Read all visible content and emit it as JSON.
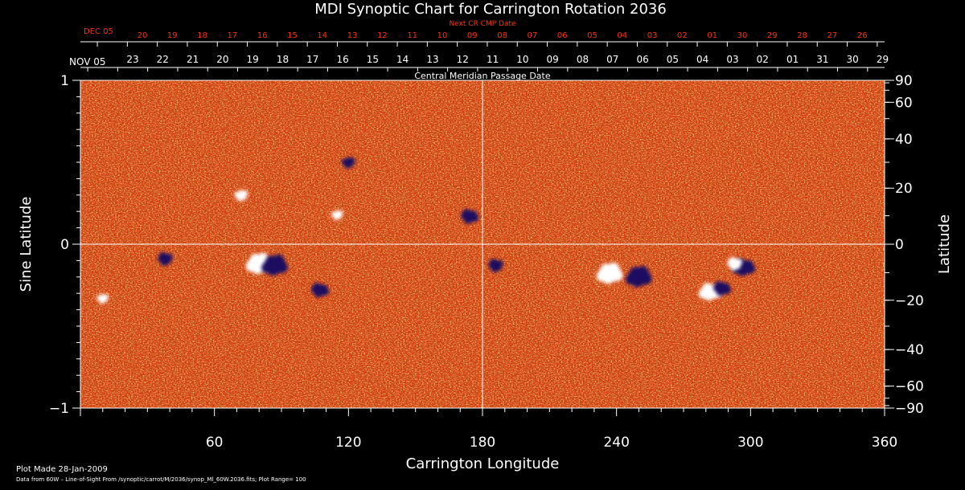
{
  "chart_data": {
    "type": "heatmap",
    "title": "MDI Synoptic Chart for Carrington Rotation 2036",
    "xlabel": "Carrington Longitude",
    "ylabel_left": "Sine Latitude",
    "ylabel_right": "Latitude",
    "x_range": [
      0,
      360
    ],
    "x_ticks": [
      60,
      120,
      180,
      240,
      300,
      360
    ],
    "y_left_range": [
      -1,
      1
    ],
    "y_left_ticks": [
      1,
      0,
      -1
    ],
    "y_left_tick_labels": [
      "1",
      "0",
      "−1"
    ],
    "y_right_ticks": [
      90,
      60,
      40,
      20,
      0,
      -20,
      -40,
      -60,
      -90
    ],
    "y_right_tick_labels": [
      "90",
      "60",
      "40",
      "20",
      "0",
      "−20",
      "−40",
      "−60",
      "−90"
    ],
    "top_axis_cmp": {
      "label": "Central Meridian Passage Date",
      "first_label": "NOV 05",
      "dates": [
        "23",
        "22",
        "21",
        "20",
        "19",
        "18",
        "17",
        "16",
        "15",
        "14",
        "13",
        "12",
        "11",
        "10",
        "09",
        "08",
        "07",
        "06",
        "05",
        "04",
        "03",
        "02",
        "01",
        "31",
        "30",
        "29"
      ]
    },
    "top_axis_next_cr": {
      "label": "Next CR CMP Date",
      "first_label": "DEC 05",
      "dates": [
        "20",
        "19",
        "18",
        "17",
        "16",
        "15",
        "14",
        "13",
        "12",
        "11",
        "10",
        "09",
        "08",
        "07",
        "06",
        "05",
        "04",
        "03",
        "02",
        "01",
        "30",
        "29",
        "28",
        "27",
        "26"
      ]
    },
    "crosshair": {
      "longitude": 180,
      "sine_latitude": 0
    },
    "colors": {
      "background_field": "#e04a10",
      "positive": "#ffffff",
      "negative": "#1a1060",
      "label_red": "#ff3300"
    },
    "features": [
      {
        "longitude": 80,
        "sine_latitude": -0.12,
        "polarity": "positive",
        "strength": 1.0
      },
      {
        "longitude": 87,
        "sine_latitude": -0.13,
        "polarity": "negative",
        "strength": 1.0
      },
      {
        "longitude": 107,
        "sine_latitude": -0.28,
        "polarity": "negative",
        "strength": 0.6
      },
      {
        "longitude": 38,
        "sine_latitude": -0.09,
        "polarity": "negative",
        "strength": 0.5
      },
      {
        "longitude": 174,
        "sine_latitude": 0.17,
        "polarity": "negative",
        "strength": 0.6
      },
      {
        "longitude": 72,
        "sine_latitude": 0.3,
        "polarity": "positive",
        "strength": 0.4
      },
      {
        "longitude": 115,
        "sine_latitude": 0.18,
        "polarity": "positive",
        "strength": 0.3
      },
      {
        "longitude": 120,
        "sine_latitude": 0.5,
        "polarity": "negative",
        "strength": 0.4
      },
      {
        "longitude": 186,
        "sine_latitude": -0.13,
        "polarity": "negative",
        "strength": 0.5
      },
      {
        "longitude": 237,
        "sine_latitude": -0.18,
        "polarity": "positive",
        "strength": 1.0
      },
      {
        "longitude": 250,
        "sine_latitude": -0.2,
        "polarity": "negative",
        "strength": 1.0
      },
      {
        "longitude": 282,
        "sine_latitude": -0.29,
        "polarity": "positive",
        "strength": 0.8
      },
      {
        "longitude": 287,
        "sine_latitude": -0.27,
        "polarity": "negative",
        "strength": 0.6
      },
      {
        "longitude": 297,
        "sine_latitude": -0.14,
        "polarity": "negative",
        "strength": 0.8
      },
      {
        "longitude": 293,
        "sine_latitude": -0.12,
        "polarity": "positive",
        "strength": 0.5
      },
      {
        "longitude": 10,
        "sine_latitude": -0.33,
        "polarity": "positive",
        "strength": 0.3
      }
    ]
  },
  "footer": {
    "plot_made": "Plot Made 28-Jan-2009",
    "data_from": "Data from 60W – Line-of-Sight From /synoptic/carrot/M/2036/synop_Ml_60W.2036.fits; Plot Range= 100"
  }
}
